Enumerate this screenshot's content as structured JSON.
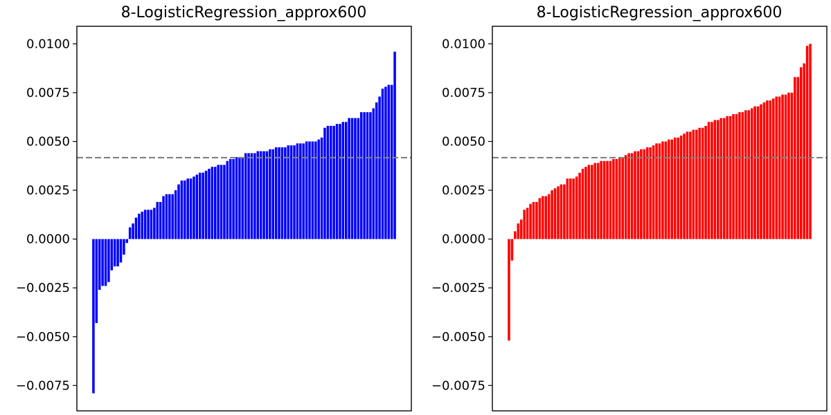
{
  "chart_data": [
    {
      "type": "bar",
      "title": "8-LogisticRegression_approx600",
      "xlabel": "",
      "ylabel": "",
      "color": "#0000ff",
      "reference_line": {
        "y": 0.00417,
        "color": "#808080",
        "style": "dashed"
      },
      "ylim": [
        -0.0088,
        0.0109
      ],
      "yticks": [
        0.01,
        0.0075,
        0.005,
        0.0025,
        0.0,
        -0.0025,
        -0.005,
        -0.0075
      ],
      "ytick_labels": [
        "0.0100",
        "0.0075",
        "0.0050",
        "0.0025",
        "0.0000",
        "−0.0025",
        "−0.0050",
        "−0.0075"
      ],
      "values": [
        -0.0079,
        -0.0043,
        -0.0026,
        -0.0024,
        -0.0024,
        -0.0022,
        -0.0016,
        -0.0014,
        -0.0014,
        -0.0012,
        -0.0008,
        -0.0002,
        0.0006,
        0.0008,
        0.0011,
        0.0013,
        0.0014,
        0.0015,
        0.0015,
        0.0015,
        0.0016,
        0.0019,
        0.0019,
        0.0022,
        0.0023,
        0.0023,
        0.0023,
        0.0025,
        0.0028,
        0.003,
        0.003,
        0.0031,
        0.0031,
        0.0032,
        0.0033,
        0.0034,
        0.0034,
        0.0035,
        0.0036,
        0.0037,
        0.0037,
        0.0038,
        0.0038,
        0.0038,
        0.004,
        0.0041,
        0.0041,
        0.0042,
        0.0042,
        0.0042,
        0.0044,
        0.0044,
        0.0044,
        0.0044,
        0.0045,
        0.0045,
        0.0045,
        0.0045,
        0.0046,
        0.0046,
        0.0047,
        0.0047,
        0.0047,
        0.0047,
        0.0048,
        0.0048,
        0.0048,
        0.0049,
        0.0049,
        0.0049,
        0.005,
        0.005,
        0.005,
        0.005,
        0.0051,
        0.0052,
        0.0057,
        0.0058,
        0.0058,
        0.0058,
        0.0059,
        0.0059,
        0.006,
        0.006,
        0.0062,
        0.0062,
        0.0062,
        0.0062,
        0.0065,
        0.0065,
        0.0065,
        0.0065,
        0.0067,
        0.007,
        0.0073,
        0.0077,
        0.0078,
        0.0079,
        0.0079,
        0.0096
      ]
    },
    {
      "type": "bar",
      "title": "8-LogisticRegression_approx600",
      "xlabel": "",
      "ylabel": "",
      "color": "#ff0000",
      "reference_line": {
        "y": 0.00417,
        "color": "#808080",
        "style": "dashed"
      },
      "ylim": [
        -0.0088,
        0.0109
      ],
      "yticks": [
        0.01,
        0.0075,
        0.005,
        0.0025,
        0.0,
        -0.0025,
        -0.005,
        -0.0075
      ],
      "ytick_labels": [
        "0.0100",
        "0.0075",
        "0.0050",
        "0.0025",
        "0.0000",
        "−0.0025",
        "−0.0050",
        "−0.0075"
      ],
      "values": [
        -0.0052,
        -0.0011,
        0.0004,
        0.0008,
        0.001,
        0.0015,
        0.0016,
        0.0018,
        0.0019,
        0.0019,
        0.0021,
        0.0022,
        0.0022,
        0.0023,
        0.0025,
        0.0026,
        0.0027,
        0.0028,
        0.0028,
        0.0031,
        0.0031,
        0.0031,
        0.0032,
        0.0034,
        0.0036,
        0.0037,
        0.0038,
        0.0038,
        0.0039,
        0.0039,
        0.004,
        0.004,
        0.004,
        0.004,
        0.0041,
        0.0041,
        0.0042,
        0.0042,
        0.0043,
        0.0044,
        0.0044,
        0.0045,
        0.0045,
        0.0046,
        0.0046,
        0.0047,
        0.0047,
        0.0048,
        0.0049,
        0.0049,
        0.005,
        0.005,
        0.0051,
        0.0051,
        0.0052,
        0.0052,
        0.0053,
        0.0054,
        0.0055,
        0.0055,
        0.0056,
        0.0056,
        0.0057,
        0.0057,
        0.0058,
        0.006,
        0.006,
        0.0061,
        0.0061,
        0.0062,
        0.0062,
        0.0063,
        0.0063,
        0.0064,
        0.0064,
        0.0065,
        0.0065,
        0.0066,
        0.0066,
        0.0067,
        0.0068,
        0.0068,
        0.0069,
        0.007,
        0.0071,
        0.0071,
        0.0072,
        0.0073,
        0.0073,
        0.0074,
        0.0074,
        0.0075,
        0.0075,
        0.0083,
        0.0083,
        0.0088,
        0.009,
        0.0099,
        0.01
      ]
    }
  ]
}
